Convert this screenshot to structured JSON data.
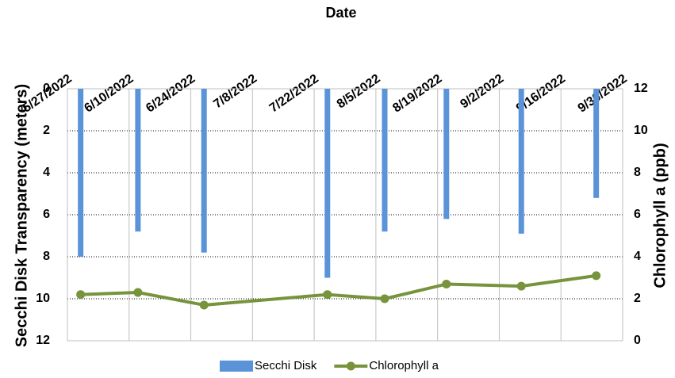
{
  "chart_data": {
    "type": "combo",
    "x_label": "Date",
    "y_label": "Secchi Disk Transparency (meters)",
    "y2_label": "Chlorophyll a (ppb)",
    "x": [
      "5/30/2022",
      "6/12/2022",
      "6/27/2022",
      "7/25/2022",
      "8/7/2022",
      "8/21/2022",
      "9/7/2022",
      "9/24/2022"
    ],
    "xlim": [
      "5/27/2022",
      "9/30/2022"
    ],
    "xticks": [
      "5/27/2022",
      "6/10/2022",
      "6/24/2022",
      "7/8/2022",
      "7/22/2022",
      "8/5/2022",
      "8/19/2022",
      "9/2/2022",
      "9/16/2022",
      "9/30/2022"
    ],
    "x_axis_position": "top",
    "series": [
      {
        "name": "Secchi Disk",
        "type": "bar",
        "color": "#5b93d9",
        "axis": "y",
        "values": [
          8.0,
          6.8,
          7.8,
          9.0,
          6.8,
          6.2,
          6.9,
          5.2
        ]
      },
      {
        "name": "Chlorophyll a",
        "type": "line",
        "color": "#77933c",
        "axis": "y2",
        "values": [
          2.2,
          2.3,
          1.7,
          2.2,
          2.0,
          2.7,
          2.6,
          3.1
        ]
      }
    ],
    "ylim": [
      0,
      12
    ],
    "y_reversed": true,
    "yticks": [
      0,
      2,
      4,
      6,
      8,
      10,
      12
    ],
    "y2lim": [
      0,
      12
    ],
    "y2ticks": [
      0,
      2,
      4,
      6,
      8,
      10,
      12
    ],
    "grid": true,
    "legend": "bottom"
  }
}
